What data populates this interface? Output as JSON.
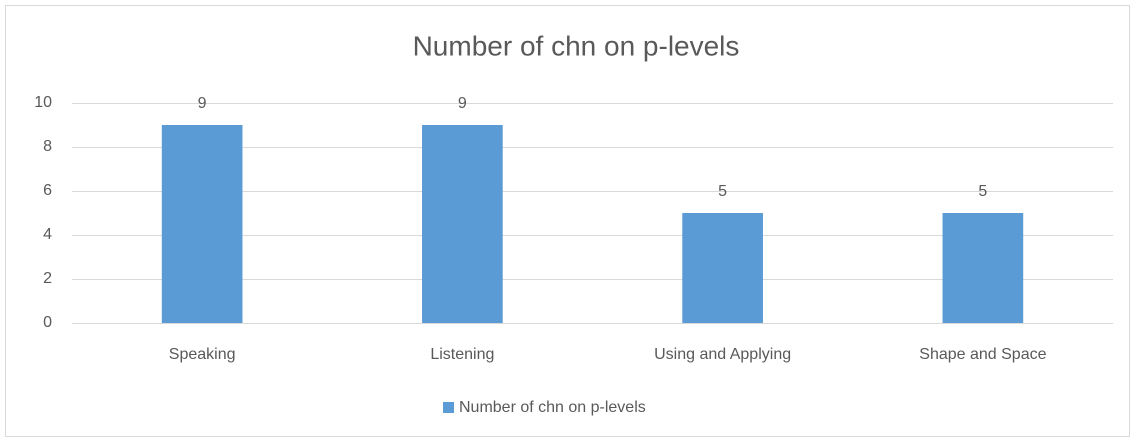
{
  "chart_data": {
    "type": "bar",
    "title": "Number of chn on p-levels",
    "categories": [
      "Speaking",
      "Listening",
      "Using and Applying",
      "Shape and Space"
    ],
    "series": [
      {
        "name": "Number of chn on p-levels",
        "color": "#5b9bd5",
        "values": [
          9,
          9,
          5,
          5
        ]
      }
    ],
    "ylim": [
      0,
      10
    ],
    "yticks": [
      0,
      2,
      4,
      6,
      8,
      10
    ],
    "grid": true,
    "legend": "bottom"
  }
}
